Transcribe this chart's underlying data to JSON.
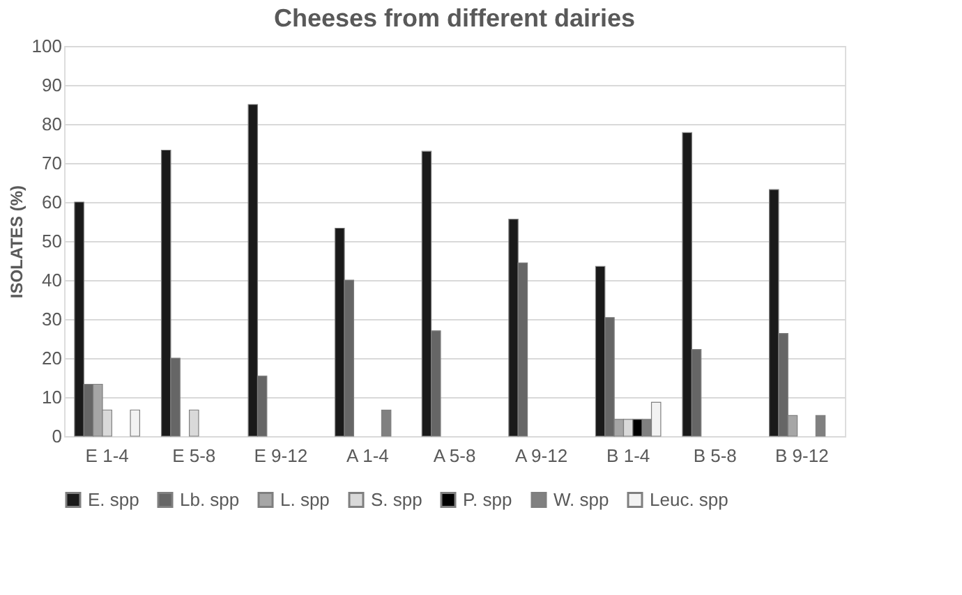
{
  "chart_data": {
    "type": "bar",
    "title": "Cheeses from different dairies",
    "ylabel": "ISOLATES (%)",
    "categories": [
      "E 1-4",
      "E 5-8",
      "E 9-12",
      "A 1-4",
      "A 5-8",
      "A 9-12",
      "B 1-4",
      "B 5-8",
      "B 9-12"
    ],
    "series": [
      {
        "name": "E. spp",
        "color": "#1a1a1a",
        "values": [
          60,
          73.3,
          85,
          53.3,
          73,
          55.6,
          43.5,
          77.8,
          63.2
        ]
      },
      {
        "name": "Lb. spp",
        "color": "#666666",
        "values": [
          13.3,
          20,
          15.4,
          40,
          27,
          44.4,
          30.4,
          22.2,
          26.3
        ]
      },
      {
        "name": "L. spp",
        "color": "#a6a6a6",
        "values": [
          13.3,
          0,
          0,
          0,
          0,
          0,
          4.3,
          0,
          5.3
        ]
      },
      {
        "name": "S. spp",
        "color": "#d9d9d9",
        "values": [
          6.7,
          6.7,
          0,
          0,
          0,
          0,
          4.3,
          0,
          0
        ]
      },
      {
        "name": "P. spp",
        "color": "#000000",
        "values": [
          0,
          0,
          0,
          0,
          0,
          0,
          4.3,
          0,
          0
        ]
      },
      {
        "name": "W. spp",
        "color": "#808080",
        "values": [
          0,
          0,
          0,
          6.7,
          0,
          0,
          4.3,
          0,
          5.3
        ]
      },
      {
        "name": "Leuc. spp",
        "color": "#f2f2f2",
        "values": [
          6.7,
          0,
          0,
          0,
          0,
          0,
          8.7,
          0,
          0
        ]
      }
    ],
    "ylim": [
      0,
      100
    ],
    "yticks": [
      0,
      10,
      20,
      30,
      40,
      50,
      60,
      70,
      80,
      90,
      100
    ],
    "grid": "y",
    "legend": "bottom"
  }
}
